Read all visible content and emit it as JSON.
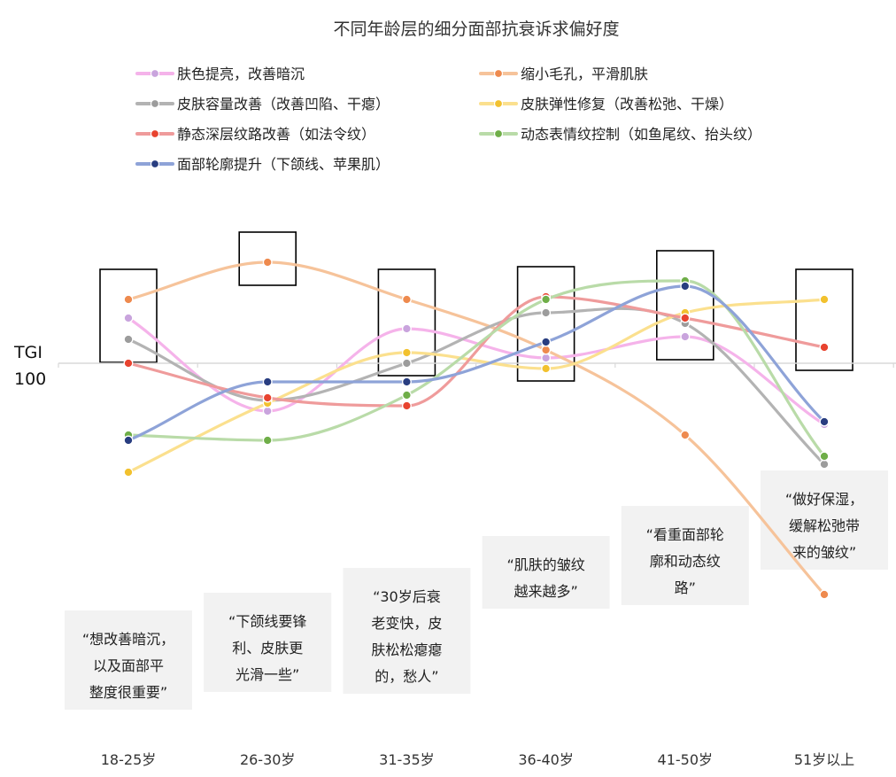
{
  "chart_data": {
    "type": "line",
    "title": "不同年龄层的细分面部抗衰诉求偏好度",
    "ylabel": "TGI",
    "reference_label": "100",
    "reference_value": 100,
    "ylim": [
      44,
      130
    ],
    "legend_position": "top",
    "categories": [
      "18-25岁",
      "26-30岁",
      "31-35岁",
      "36-40岁",
      "41-50岁",
      "51岁以上"
    ],
    "series": [
      {
        "name": "肤色提亮，改善暗沉",
        "color": "#f5b3ea",
        "values": [
          117,
          82,
          113,
          102,
          110,
          77
        ]
      },
      {
        "name": "缩小毛孔，平滑肌肤",
        "color": "#f6c39a",
        "values": [
          124,
          138,
          124,
          105,
          73,
          13
        ]
      },
      {
        "name": "皮肤容量改善（改善凹陷、干瘪）",
        "color": "#b3b3b3",
        "values": [
          109,
          86,
          100,
          119,
          115,
          62
        ]
      },
      {
        "name": "皮肤弹性修复（改善松弛、干燥）",
        "color": "#fbe08e",
        "values": [
          59,
          85,
          104,
          98,
          119,
          124
        ]
      },
      {
        "name": "静态深层纹路改善（如法令纹）",
        "color": "#ef9b9b",
        "values": [
          100,
          87,
          84,
          125,
          117,
          106
        ]
      },
      {
        "name": "动态表情纹控制（如鱼尾纹、抬头纹）",
        "color": "#b9dba8",
        "values": [
          73,
          71,
          88,
          124,
          131,
          65
        ]
      },
      {
        "name": "面部轮廓提升（下颌线、苹果肌）",
        "color": "#8ea3d8",
        "values": [
          71,
          93,
          93,
          108,
          129,
          78
        ]
      }
    ],
    "marker_colors": [
      "#c9a4dd",
      "#ee8a4e",
      "#9c9c9c",
      "#f2c12e",
      "#e8432f",
      "#6fae48",
      "#283d80"
    ],
    "quotes": [
      [
        "“想改善暗沉，",
        "以及面部平",
        "整度很重要”"
      ],
      [
        "“下颌线要锋",
        "利、皮肤更",
        "光滑一些”"
      ],
      [
        "“30岁后衰",
        "老变快，皮",
        "肤松松瘪瘪",
        "的，愁人”"
      ],
      [
        "“肌肤的皱纹",
        "越来越多”"
      ],
      [
        "“看重面部轮",
        "廓和动态纹",
        "路”"
      ],
      [
        "“做好保湿，",
        "缓解松弛带",
        "来的皱纹”"
      ]
    ]
  }
}
